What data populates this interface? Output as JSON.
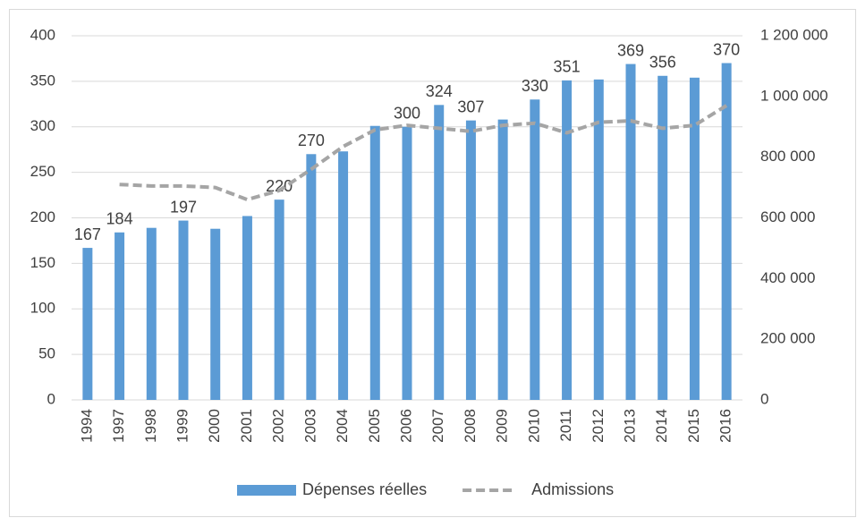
{
  "chart_data": {
    "type": "bar",
    "categories": [
      "1994",
      "1997",
      "1998",
      "1999",
      "2000",
      "2001",
      "2002",
      "2003",
      "2004",
      "2005",
      "2006",
      "2007",
      "2008",
      "2009",
      "2010",
      "2011",
      "2012",
      "2013",
      "2014",
      "2015",
      "2016"
    ],
    "series": [
      {
        "name": "Dépenses réelles",
        "type": "bar",
        "color": "#5b9bd5",
        "values": [
          167,
          184,
          189,
          197,
          188,
          202,
          220,
          270,
          273,
          301,
          300,
          324,
          307,
          308,
          330,
          351,
          352,
          369,
          356,
          354,
          370
        ],
        "value_labels": [
          "167",
          "184",
          null,
          "197",
          null,
          null,
          "220",
          "270",
          null,
          null,
          "300",
          "324",
          "307",
          null,
          "330",
          "351",
          null,
          "369",
          "356",
          null,
          "370"
        ]
      },
      {
        "name": "Admissions",
        "type": "line",
        "axis": "y2",
        "color": "#a5a5a5",
        "values": [
          null,
          710000,
          705000,
          705000,
          700000,
          660000,
          690000,
          760000,
          835000,
          890000,
          905000,
          895000,
          885000,
          905000,
          912000,
          880000,
          915000,
          920000,
          895000,
          905000,
          970000
        ]
      }
    ],
    "ylim": [
      0,
      400
    ],
    "yticks": [
      0,
      50,
      100,
      150,
      200,
      250,
      300,
      350,
      400
    ],
    "y2lim": [
      0,
      1200000
    ],
    "y2ticks": [
      0,
      {
        "value": 200000,
        "label": "200 000"
      },
      {
        "value": 400000,
        "label": "400 000"
      },
      {
        "value": 600000,
        "label": "600 000"
      },
      {
        "value": 800000,
        "label": "800 000"
      },
      {
        "value": 1000000,
        "label": "1 000 000"
      },
      {
        "value": 1200000,
        "label": "1 200 000"
      }
    ],
    "grid": true,
    "legend": "bottom"
  }
}
